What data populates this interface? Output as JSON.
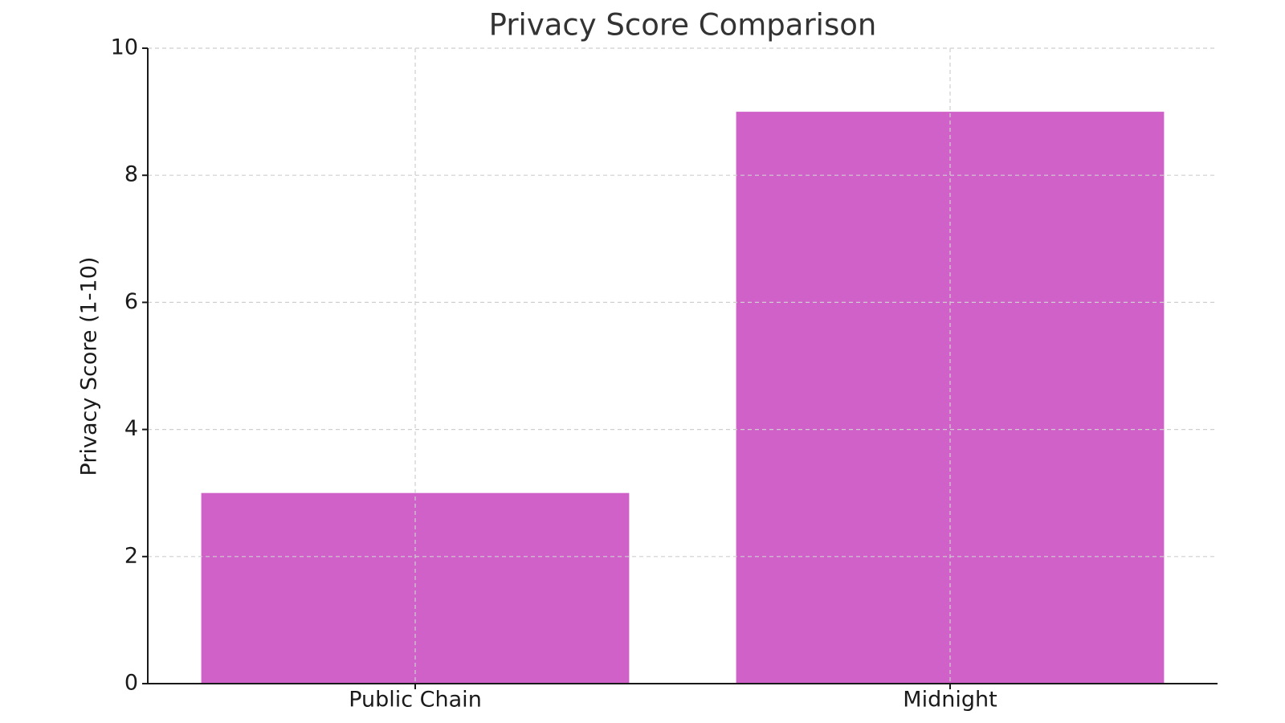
{
  "chart_data": {
    "type": "bar",
    "title": "Privacy Score Comparison",
    "y_label": "Privacy Score (1-10)",
    "categories": [
      "Public Chain",
      "Midnight"
    ],
    "values": [
      3,
      9
    ],
    "color": "#cf61c8",
    "ylim": [
      0,
      10
    ],
    "yticks": [
      0,
      2,
      4,
      6,
      8,
      10
    ],
    "grid": true
  }
}
